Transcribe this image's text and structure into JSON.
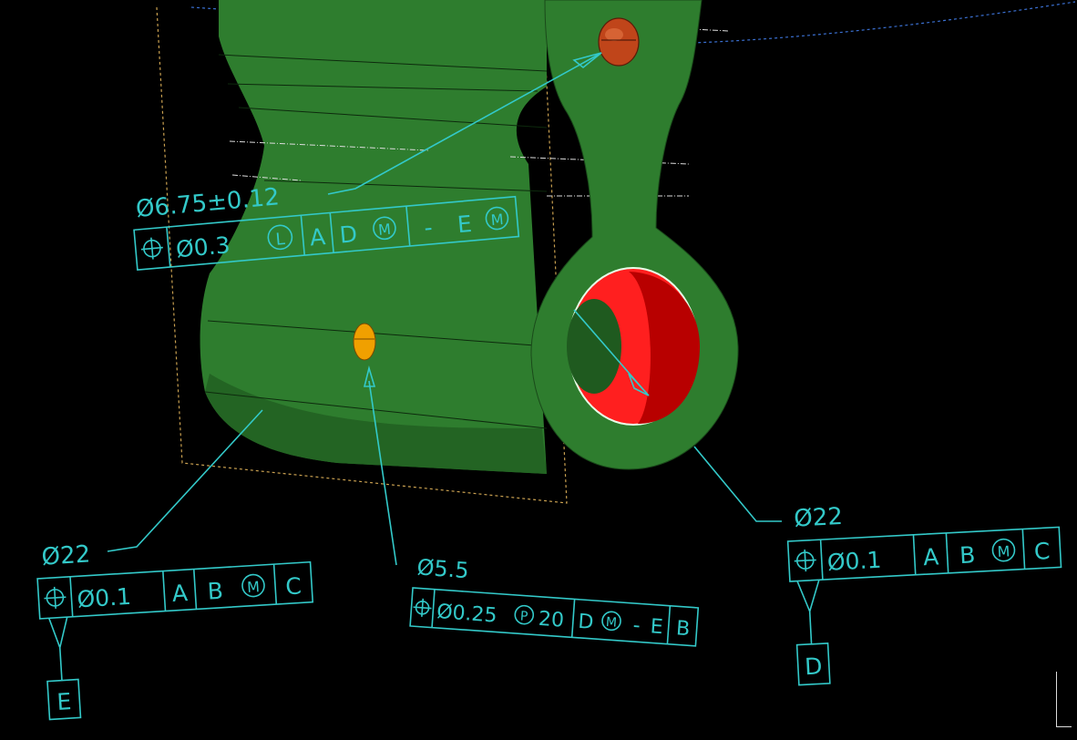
{
  "colors": {
    "background": "#000000",
    "part_green": "#2e7d2e",
    "part_dark_green": "#1d5e1d",
    "bore_red": "#ff1f1f",
    "bore_dark_red": "#b80000",
    "hole_orange": "#c0451a",
    "hole_yellow": "#f0a000",
    "annotation_cyan": "#33c9c9",
    "frame_dashed_orange": "#c9a050",
    "centerline_blue": "#3a6fd0"
  },
  "annotations": {
    "top_hole": {
      "size": "Ø6.75±0.12",
      "fcf": {
        "symbol": "position-icon",
        "tolerance": "Ø0.3",
        "modifier": "L",
        "datum_a": "A",
        "datum_d": "D",
        "datum_d_mod": "M",
        "dash": "-",
        "datum_e": "E",
        "datum_e_mod": "M"
      }
    },
    "left_bore": {
      "size": "Ø22",
      "fcf": {
        "symbol": "position-icon",
        "tolerance": "Ø0.1",
        "datum_a": "A",
        "datum_b": "B",
        "datum_b_mod": "M",
        "datum_c": "C"
      },
      "datum_label": "E"
    },
    "small_hole": {
      "size": "Ø5.5",
      "fcf": {
        "symbol": "position-icon",
        "tolerance": "Ø0.25",
        "projected": "P",
        "projection": "20",
        "datum_d": "D",
        "datum_d_mod": "M",
        "dash": "-",
        "datum_e": "E",
        "datum_b": "B"
      }
    },
    "right_bore": {
      "size": "Ø22",
      "fcf": {
        "symbol": "position-icon",
        "tolerance": "Ø0.1",
        "datum_a": "A",
        "datum_b": "B",
        "datum_b_mod": "M",
        "datum_c": "C"
      },
      "datum_label": "D"
    }
  }
}
